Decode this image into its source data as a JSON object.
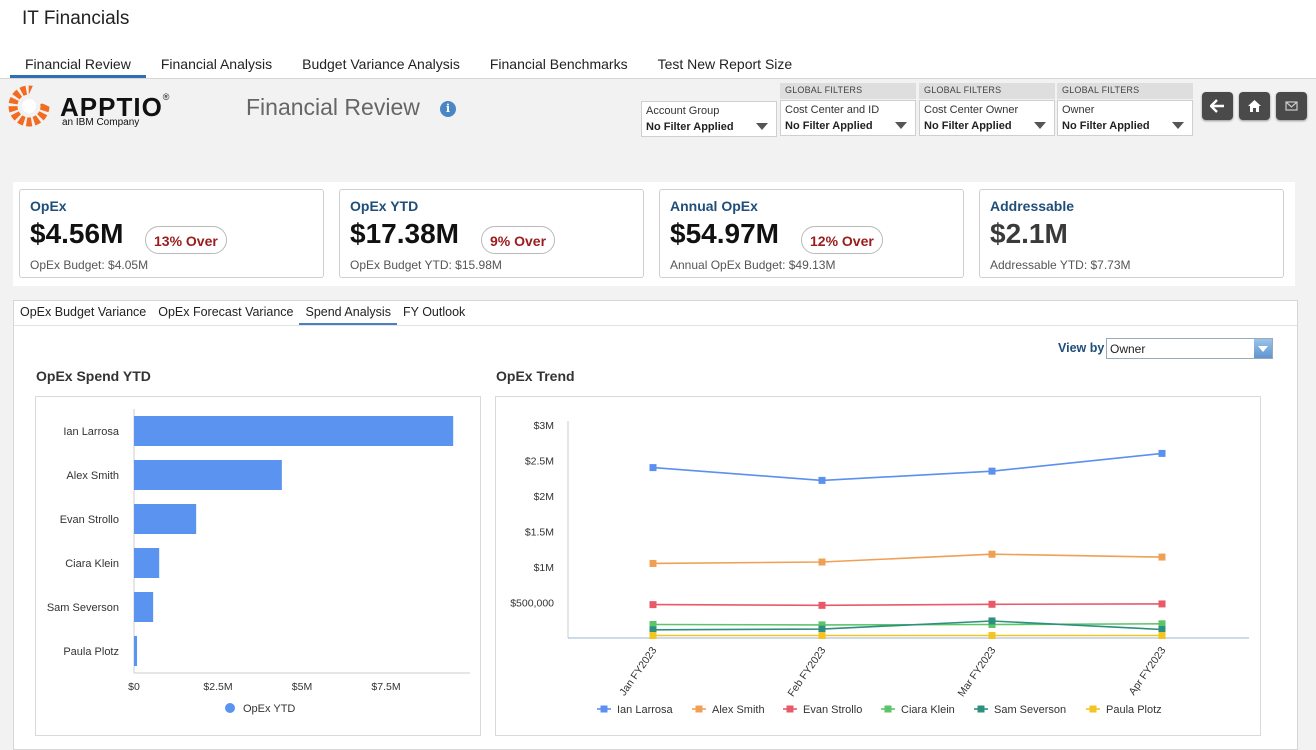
{
  "app": {
    "title": "IT Financials"
  },
  "top_tabs": [
    {
      "label": "Financial Review",
      "active": true
    },
    {
      "label": "Financial Analysis",
      "active": false
    },
    {
      "label": "Budget Variance Analysis",
      "active": false
    },
    {
      "label": "Financial Benchmarks",
      "active": false
    },
    {
      "label": "Test New Report Size",
      "active": false
    }
  ],
  "logo": {
    "name": "APPTIO",
    "tagline": "an IBM Company",
    "trademark": "®"
  },
  "report": {
    "title": "Financial Review",
    "info_icon": "i"
  },
  "filters": [
    {
      "tag": "",
      "label": "Account Group",
      "value": "No Filter Applied"
    },
    {
      "tag": "GLOBAL FILTERS",
      "label": "Cost Center and ID",
      "value": "No Filter Applied"
    },
    {
      "tag": "GLOBAL FILTERS",
      "label": "Cost Center Owner",
      "value": "No Filter Applied"
    },
    {
      "tag": "GLOBAL FILTERS",
      "label": "Owner",
      "value": "No Filter Applied"
    }
  ],
  "actions": [
    {
      "icon": "back-arrow-icon"
    },
    {
      "icon": "home-icon"
    },
    {
      "icon": "mail-icon"
    }
  ],
  "kpis": [
    {
      "title": "OpEx",
      "value": "$4.56M",
      "badge": "13% Over",
      "sub": "OpEx Budget: $4.05M"
    },
    {
      "title": "OpEx YTD",
      "value": "$17.38M",
      "badge": "9% Over",
      "sub": "OpEx Budget YTD: $15.98M"
    },
    {
      "title": "Annual OpEx",
      "value": "$54.97M",
      "badge": "12% Over",
      "sub": "Annual OpEx Budget: $49.13M"
    },
    {
      "title": "Addressable",
      "value": "$2.1M",
      "badge": "",
      "sub": "Addressable YTD: $7.73M"
    }
  ],
  "sub_tabs": [
    {
      "label": "OpEx Budget Variance",
      "active": false
    },
    {
      "label": "OpEx Forecast Variance",
      "active": false
    },
    {
      "label": "Spend Analysis",
      "active": true
    },
    {
      "label": "FY Outlook",
      "active": false
    }
  ],
  "view_by": {
    "label": "View by",
    "value": "Owner"
  },
  "colors": {
    "bar": "#5b93f1",
    "accent": "#2f6fb3",
    "badge_text": "#9b1c1c"
  },
  "chart_data": [
    {
      "type": "bar",
      "orientation": "horizontal",
      "title": "OpEx Spend YTD",
      "categories": [
        "Ian Larrosa",
        "Alex Smith",
        "Evan Strollo",
        "Ciara Klein",
        "Sam Severson",
        "Paula Plotz"
      ],
      "series": [
        {
          "name": "OpEx YTD",
          "color": "#5b93f1",
          "values": [
            9500000,
            4400000,
            1850000,
            750000,
            570000,
            90000
          ]
        }
      ],
      "xticks": [
        0,
        2500000,
        5000000,
        7500000
      ],
      "xtick_labels": [
        "$0",
        "$2.5M",
        "$5M",
        "$7.5M"
      ],
      "xlim": [
        0,
        10000000
      ],
      "legend": "bottom"
    },
    {
      "type": "line",
      "title": "OpEx Trend",
      "x": [
        "Jan FY2023",
        "Feb FY2023",
        "Mar FY2023",
        "Apr FY2023"
      ],
      "series": [
        {
          "name": "Ian Larrosa",
          "color": "#5b8ff0",
          "values": [
            2400000,
            2220000,
            2350000,
            2600000
          ]
        },
        {
          "name": "Alex Smith",
          "color": "#f0a055",
          "values": [
            1050000,
            1070000,
            1180000,
            1140000
          ]
        },
        {
          "name": "Evan Strollo",
          "color": "#e85a6a",
          "values": [
            470000,
            460000,
            475000,
            480000
          ]
        },
        {
          "name": "Ciara Klein",
          "color": "#5cc46a",
          "values": [
            190000,
            185000,
            190000,
            200000
          ]
        },
        {
          "name": "Sam Severson",
          "color": "#2f8f7f",
          "values": [
            115000,
            125000,
            240000,
            120000
          ]
        },
        {
          "name": "Paula Plotz",
          "color": "#f2c522",
          "values": [
            35000,
            35000,
            35000,
            35000
          ]
        }
      ],
      "ylim": [
        0,
        3000000
      ],
      "yticks": [
        500000,
        1000000,
        1500000,
        2000000,
        2500000,
        3000000
      ],
      "ytick_labels": [
        "$500,000",
        "$1M",
        "$1.5M",
        "$2M",
        "$2.5M",
        "$3M"
      ],
      "legend": "bottom"
    }
  ]
}
